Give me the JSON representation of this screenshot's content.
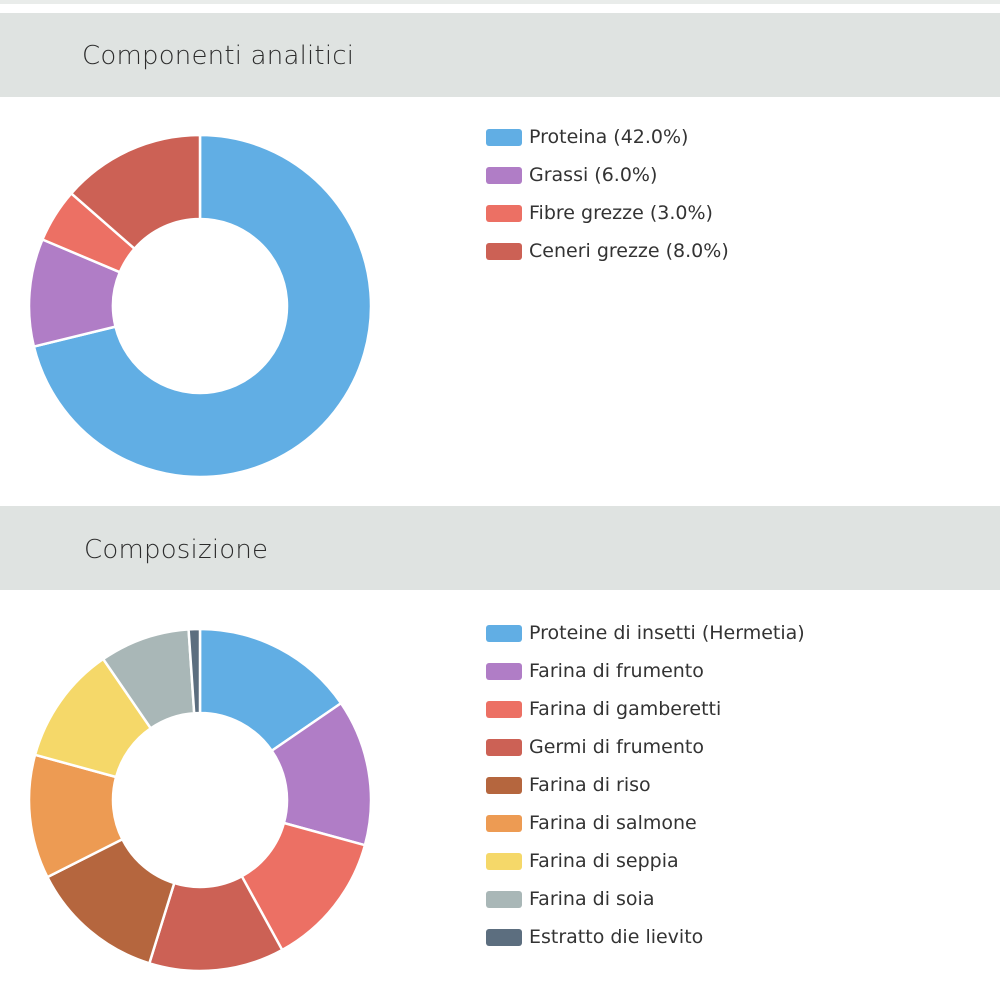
{
  "chart_data": [
    {
      "type": "pie",
      "donut": true,
      "title": "Componenti analitici",
      "legend_position": "right",
      "categories": [
        "Proteina (42.0%)",
        "Grassi (6.0%)",
        "Fibre grezze (3.0%)",
        "Ceneri grezze (8.0%)"
      ],
      "values": [
        42.0,
        6.0,
        3.0,
        8.0
      ],
      "colors": [
        "#61aee4",
        "#b07dc6",
        "#ec7064",
        "#cc6155"
      ]
    },
    {
      "type": "pie",
      "donut": true,
      "title": "Composizione",
      "legend_position": "right",
      "categories": [
        "Proteine di insetti (Hermetia)",
        "Farina di frumento",
        "Farina di gamberetti",
        "Germi di frumento",
        "Farina di riso",
        "Farina di salmone",
        "Farina di seppia",
        "Farina di soia",
        "Estratto die lievito"
      ],
      "values": [
        14.5,
        13.0,
        12.0,
        12.0,
        12.0,
        11.0,
        10.5,
        8.0,
        1.0
      ],
      "colors": [
        "#61aee4",
        "#b07dc6",
        "#ec7064",
        "#cc6155",
        "#b5663e",
        "#ed9b53",
        "#f5d869",
        "#a9b7b7",
        "#5c6e7f"
      ]
    }
  ]
}
